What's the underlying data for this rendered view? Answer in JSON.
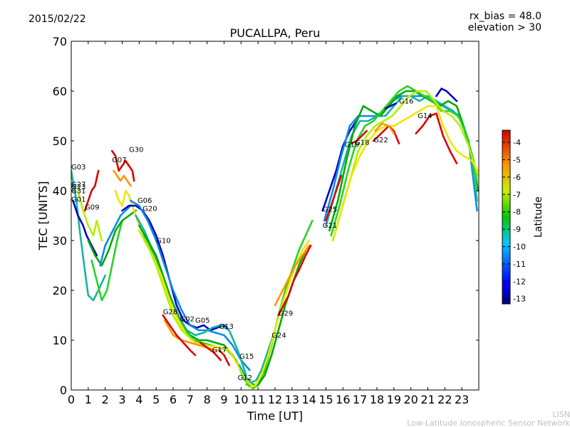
{
  "header": {
    "date": "2015/02/22",
    "rx_bias": "rx_bias = 48.0",
    "elevation": "elevation > 30"
  },
  "chart_data": {
    "type": "line",
    "title": "PUCALLPA, Peru",
    "xlabel": "Time [UT]",
    "ylabel": "TEC [UNITS]",
    "xlim": [
      0,
      24
    ],
    "ylim": [
      0,
      70
    ],
    "xticks": [
      "0",
      "1",
      "2",
      "3",
      "4",
      "5",
      "6",
      "7",
      "8",
      "9",
      "10",
      "11",
      "12",
      "13",
      "14",
      "15",
      "16",
      "17",
      "18",
      "19",
      "20",
      "21",
      "22",
      "23"
    ],
    "yticks": [
      "0",
      "10",
      "20",
      "30",
      "40",
      "50",
      "60",
      "70"
    ],
    "colorbar": {
      "label": "Latitude",
      "range": [
        -13.3,
        -3.3
      ],
      "ticks": [
        "-4",
        "-5",
        "-6",
        "-7",
        "-8",
        "-9",
        "-10",
        "-11",
        "-12",
        "-13"
      ]
    },
    "colors": {
      "blue": "#0000c8",
      "cyan_blue": "#0a8ce6",
      "teal": "#14b4a0",
      "green_dark": "#00aa00",
      "green": "#28d228",
      "yellow_green": "#b4f000",
      "yellow": "#f0e600",
      "orange": "#ff9600",
      "red": "#dc0000"
    },
    "satellite_labels": [
      {
        "label": "G03",
        "x": 0.0,
        "y": 44.3
      },
      {
        "label": "G27",
        "x": 0.0,
        "y": 40.8
      },
      {
        "label": "G23",
        "x": 0.0,
        "y": 40.3
      },
      {
        "label": "G31",
        "x": 0.0,
        "y": 39.5
      },
      {
        "label": "G01",
        "x": 0.0,
        "y": 37.8
      },
      {
        "label": "G09",
        "x": 0.8,
        "y": 36.2
      },
      {
        "label": "G07",
        "x": 2.4,
        "y": 45.7
      },
      {
        "label": "G30",
        "x": 3.4,
        "y": 47.8
      },
      {
        "label": "G06",
        "x": 3.9,
        "y": 37.6
      },
      {
        "label": "G20",
        "x": 4.2,
        "y": 35.9
      },
      {
        "label": "G10",
        "x": 5.0,
        "y": 29.5
      },
      {
        "label": "G28",
        "x": 5.4,
        "y": 15.2
      },
      {
        "label": "G02",
        "x": 6.4,
        "y": 13.8
      },
      {
        "label": "G05",
        "x": 7.3,
        "y": 13.5
      },
      {
        "label": "G13",
        "x": 8.7,
        "y": 12.3
      },
      {
        "label": "G17",
        "x": 8.3,
        "y": 7.6
      },
      {
        "label": "G15",
        "x": 9.9,
        "y": 6.3
      },
      {
        "label": "G12",
        "x": 9.8,
        "y": 2.0
      },
      {
        "label": "G24",
        "x": 11.8,
        "y": 10.5
      },
      {
        "label": "G29",
        "x": 12.2,
        "y": 14.9
      },
      {
        "label": "G25",
        "x": 14.8,
        "y": 35.8
      },
      {
        "label": "G21",
        "x": 14.8,
        "y": 32.6
      },
      {
        "label": "G19",
        "x": 16.1,
        "y": 48.8
      },
      {
        "label": "G18",
        "x": 16.7,
        "y": 49.2
      },
      {
        "label": "G22",
        "x": 17.8,
        "y": 49.7
      },
      {
        "label": "G16",
        "x": 19.3,
        "y": 57.5
      },
      {
        "label": "G14",
        "x": 20.4,
        "y": 54.6
      }
    ],
    "series": [
      {
        "color": "teal",
        "x": [
          0.0,
          0.3,
          0.5,
          0.8,
          1.0,
          1.3,
          1.6,
          2.0
        ],
        "y": [
          44,
          38,
          32,
          24,
          19,
          18,
          20,
          23
        ]
      },
      {
        "color": "blue",
        "x": [
          0.1,
          0.4,
          0.7,
          0.9,
          1.2,
          1.5
        ],
        "y": [
          38,
          35,
          33,
          31,
          29,
          27
        ]
      },
      {
        "color": "red",
        "x": [
          0.8,
          1.0,
          1.2,
          1.4,
          1.6
        ],
        "y": [
          36,
          38,
          40,
          41,
          44
        ]
      },
      {
        "color": "yellow_green",
        "x": [
          0.4,
          0.7,
          1.0,
          1.3,
          1.5,
          1.8
        ],
        "y": [
          40,
          36,
          33,
          31,
          34,
          30
        ]
      },
      {
        "color": "green",
        "x": [
          1.2,
          1.5,
          1.8,
          2.1,
          2.4,
          2.7,
          3.0
        ],
        "y": [
          26,
          22,
          18,
          20,
          25,
          30,
          34
        ]
      },
      {
        "color": "green_dark",
        "x": [
          1.0,
          1.4,
          1.8,
          2.2,
          2.6,
          3.0,
          3.4,
          3.8
        ],
        "y": [
          30,
          27,
          25,
          28,
          32,
          34,
          35,
          36
        ]
      },
      {
        "color": "cyan_blue",
        "x": [
          1.7,
          2.0,
          2.3,
          2.6,
          2.9,
          3.2,
          3.5
        ],
        "y": [
          25,
          29,
          31,
          33,
          35,
          36,
          37
        ]
      },
      {
        "color": "red",
        "x": [
          2.4,
          2.6,
          2.8,
          3.0,
          3.2,
          3.4,
          3.6,
          3.7
        ],
        "y": [
          48,
          47,
          44,
          45,
          46,
          45,
          44,
          42
        ]
      },
      {
        "color": "orange",
        "x": [
          2.5,
          2.7,
          2.9,
          3.1,
          3.3,
          3.5
        ],
        "y": [
          44,
          43,
          42,
          43,
          42,
          41
        ]
      },
      {
        "color": "yellow",
        "x": [
          2.6,
          2.8,
          3.0,
          3.2,
          3.4,
          3.7,
          4.0
        ],
        "y": [
          40,
          38,
          37,
          40,
          39,
          36,
          33
        ]
      },
      {
        "color": "blue",
        "x": [
          3.0,
          3.4,
          3.8,
          4.2,
          4.6,
          5.0,
          5.4,
          5.8,
          6.2,
          6.6,
          7.0,
          7.4,
          7.8,
          8.2,
          8.6,
          9.0,
          9.3
        ],
        "y": [
          36,
          37,
          37,
          36,
          34,
          31,
          27,
          22,
          17,
          14,
          13,
          12.5,
          13,
          12,
          12.5,
          13,
          12
        ]
      },
      {
        "color": "cyan_blue",
        "x": [
          3.5,
          4.0,
          4.5,
          5.0,
          5.5,
          6.0,
          6.5,
          7.0,
          7.5,
          8.0,
          8.5,
          9.0,
          9.5,
          10.0,
          10.5
        ],
        "y": [
          38,
          37,
          34,
          30,
          25,
          20,
          16,
          13,
          12,
          12,
          11.5,
          11,
          9,
          6,
          4
        ]
      },
      {
        "color": "teal",
        "x": [
          3.8,
          4.3,
          4.8,
          5.3,
          5.8,
          6.3,
          6.8,
          7.3,
          7.8,
          8.3,
          8.8,
          9.3,
          9.8,
          10.3
        ],
        "y": [
          35,
          32,
          28,
          24,
          19,
          15,
          12,
          11,
          11.5,
          12.5,
          13,
          12,
          8,
          3
        ]
      },
      {
        "color": "green_dark",
        "x": [
          4.0,
          4.5,
          5.0,
          5.5,
          6.0,
          6.5,
          7.0,
          7.5,
          8.0,
          8.5,
          9.0,
          9.5,
          10.0,
          10.5,
          10.8
        ],
        "y": [
          33,
          30,
          27,
          22,
          17,
          13,
          11,
          10,
          10,
          9.5,
          9,
          7,
          4,
          1.5,
          1
        ]
      },
      {
        "color": "green",
        "x": [
          4.2,
          4.7,
          5.2,
          5.7,
          6.2,
          6.7,
          7.2,
          7.7,
          8.2,
          8.7,
          9.2,
          9.7,
          10.2,
          10.6
        ],
        "y": [
          31,
          28,
          24,
          19,
          15,
          12,
          10,
          9.5,
          9,
          8.5,
          8,
          6,
          2,
          1
        ]
      },
      {
        "color": "yellow",
        "x": [
          4.3,
          4.8,
          5.3,
          5.8,
          6.3,
          6.8,
          7.3,
          7.8,
          8.3,
          8.8,
          9.3,
          9.8,
          10.3,
          10.8
        ],
        "y": [
          30,
          27,
          23,
          18,
          14,
          11,
          9.5,
          9,
          8.8,
          8.5,
          8,
          5,
          2,
          0.5
        ]
      },
      {
        "color": "yellow_green",
        "x": [
          4.0,
          4.5,
          5.0,
          5.5,
          6.0,
          6.5,
          7.0
        ],
        "y": [
          32,
          29,
          25,
          20,
          15,
          12,
          10.5
        ]
      },
      {
        "color": "orange",
        "x": [
          5.5,
          6.0,
          6.5,
          7.0,
          7.5,
          8.0,
          8.5
        ],
        "y": [
          14,
          11,
          10,
          9.5,
          9,
          8.5,
          8
        ]
      },
      {
        "color": "red",
        "x": [
          5.4,
          5.8,
          6.2,
          6.6,
          7.0,
          7.3
        ],
        "y": [
          15,
          13,
          11,
          9.5,
          8,
          7
        ]
      },
      {
        "color": "red",
        "x": [
          7.6,
          8.0,
          8.4,
          8.8
        ],
        "y": [
          9.5,
          8.5,
          7.5,
          6
        ]
      },
      {
        "color": "red",
        "x": [
          8.7,
          9.0,
          9.3
        ],
        "y": [
          8,
          7,
          5
        ]
      },
      {
        "color": "teal",
        "x": [
          9.9,
          10.3,
          10.6,
          10.9,
          11.2,
          11.6,
          12.0
        ],
        "y": [
          5,
          2.5,
          1.5,
          2,
          4,
          8,
          12
        ]
      },
      {
        "color": "green",
        "x": [
          10.3,
          10.7,
          11.0,
          11.4,
          11.8,
          12.2,
          12.6,
          13.0,
          13.4,
          13.8,
          14.2
        ],
        "y": [
          1.2,
          0.3,
          1,
          4,
          9,
          15,
          20,
          24,
          28,
          31,
          34
        ]
      },
      {
        "color": "yellow",
        "x": [
          10.5,
          10.8,
          11.2,
          11.6,
          12.0,
          12.4,
          12.8,
          13.2,
          13.6,
          14.0
        ],
        "y": [
          0.5,
          0.8,
          3,
          7,
          12,
          17,
          21,
          25,
          28,
          30
        ]
      },
      {
        "color": "green_dark",
        "x": [
          11.0,
          11.4,
          11.8,
          12.2,
          12.6,
          13.0,
          13.4,
          13.8
        ],
        "y": [
          1,
          3,
          7,
          12,
          17,
          21,
          25,
          28
        ]
      },
      {
        "color": "orange",
        "x": [
          12.0,
          12.3,
          12.6,
          12.9,
          13.2,
          13.6,
          14.0
        ],
        "y": [
          17,
          19,
          21,
          23,
          25,
          27,
          29
        ]
      },
      {
        "color": "red",
        "x": [
          12.2,
          12.5,
          12.8,
          13.1,
          13.4,
          13.8,
          14.1
        ],
        "y": [
          15,
          17,
          19,
          22,
          24,
          27,
          29
        ]
      },
      {
        "color": "blue",
        "x": [
          14.8,
          15.2,
          15.6,
          16.0,
          16.4,
          16.8
        ],
        "y": [
          36,
          40,
          44,
          49,
          52,
          54
        ]
      },
      {
        "color": "cyan_blue",
        "x": [
          14.9,
          15.4,
          15.9,
          16.4,
          16.9,
          17.4,
          17.9,
          18.4,
          18.9,
          19.4,
          19.9,
          20.4,
          20.9,
          21.4,
          21.9,
          22.4,
          22.9,
          23.4,
          23.9
        ],
        "y": [
          34,
          40,
          47,
          53,
          55,
          55,
          55,
          56,
          58,
          59,
          59,
          59,
          59,
          58,
          57,
          56,
          55,
          50,
          36
        ]
      },
      {
        "color": "teal",
        "x": [
          15.0,
          15.5,
          16.0,
          16.5,
          17.0,
          17.5,
          18.0,
          18.5,
          19.0,
          19.5,
          20.0,
          20.5,
          21.0,
          21.5,
          22.0,
          22.5,
          23.0,
          23.5,
          23.9
        ],
        "y": [
          33,
          39,
          45,
          51,
          54,
          54,
          55,
          55,
          57,
          59,
          59,
          58,
          59,
          58,
          57,
          56,
          54,
          48,
          38
        ]
      },
      {
        "color": "green_dark",
        "x": [
          15.2,
          15.7,
          16.2,
          16.7,
          17.2,
          17.7,
          18.2,
          18.7,
          19.2,
          19.7,
          20.2,
          20.7,
          21.2,
          21.7,
          22.2,
          22.7,
          23.2,
          23.7,
          23.95
        ],
        "y": [
          32,
          38,
          46,
          53,
          57,
          56,
          55,
          57,
          59,
          60,
          60,
          59,
          58,
          57,
          58,
          57,
          52,
          46,
          40
        ]
      },
      {
        "color": "green",
        "x": [
          15.3,
          15.8,
          16.3,
          16.8,
          17.3,
          17.8,
          18.3,
          18.8,
          19.3,
          19.8,
          20.3,
          20.8,
          21.3,
          21.8,
          22.3,
          22.8,
          23.3,
          23.9
        ],
        "y": [
          31,
          37,
          44,
          50,
          53,
          54,
          56,
          58,
          60,
          61,
          60,
          59,
          58,
          56,
          56,
          55,
          51,
          42
        ]
      },
      {
        "color": "yellow_green",
        "x": [
          15.4,
          15.9,
          16.4,
          16.9,
          17.4,
          17.9,
          18.4,
          18.9,
          19.4,
          19.9,
          20.4,
          20.9,
          21.4,
          21.9,
          22.4,
          22.9,
          23.4,
          23.95
        ],
        "y": [
          30,
          36,
          42,
          48,
          51,
          53,
          54,
          55,
          57,
          59,
          60,
          60,
          58,
          56,
          55,
          53,
          49,
          43
        ]
      },
      {
        "color": "yellow",
        "x": [
          15.5,
          16.0,
          16.5,
          17.0,
          17.5,
          18.0,
          18.5,
          19.0,
          19.5,
          20.0,
          20.5,
          21.0,
          21.5,
          21.9,
          22.3,
          22.7,
          23.1,
          23.6,
          23.95
        ],
        "y": [
          31,
          37,
          43,
          47,
          50,
          52,
          53,
          53,
          54,
          55,
          56,
          57,
          57,
          53,
          50,
          48,
          47,
          46,
          44
        ]
      },
      {
        "color": "red",
        "x": [
          15.0,
          15.3,
          15.6,
          15.9
        ],
        "y": [
          34,
          37,
          40,
          43
        ]
      },
      {
        "color": "red",
        "x": [
          16.5,
          16.8,
          17.1,
          17.4
        ],
        "y": [
          49.5,
          50,
          51,
          52
        ]
      },
      {
        "color": "red",
        "x": [
          17.8,
          18.1,
          18.4,
          18.7,
          19.0,
          19.3
        ],
        "y": [
          50,
          51,
          52,
          53,
          52,
          49.5
        ]
      },
      {
        "color": "orange",
        "x": [
          17.9,
          18.3,
          18.7,
          19.0
        ],
        "y": [
          52,
          53.5,
          53,
          51.5
        ]
      },
      {
        "color": "red",
        "x": [
          20.3,
          20.7,
          21.1,
          21.5,
          21.9,
          22.3,
          22.7
        ],
        "y": [
          51.5,
          53,
          55,
          55.5,
          51,
          48,
          45.5
        ]
      },
      {
        "color": "blue",
        "x": [
          21.5,
          21.8,
          22.1,
          22.4,
          22.7
        ],
        "y": [
          59,
          60.5,
          60,
          59,
          58
        ]
      },
      {
        "color": "blue",
        "x": [
          18.5,
          18.8,
          19.1
        ],
        "y": [
          56.5,
          57,
          57.5
        ]
      }
    ]
  },
  "footer": {
    "line1": "LISN",
    "line2": "Low-Latitude Ionospheric Sensor Network"
  }
}
